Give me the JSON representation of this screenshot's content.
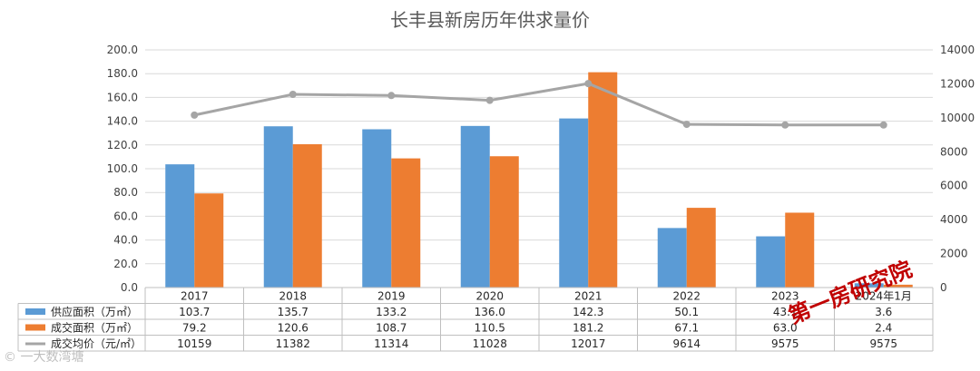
{
  "chart_data": {
    "type": "bar",
    "title": "长丰县新房历年供求量价",
    "categories": [
      "2017",
      "2018",
      "2019",
      "2020",
      "2021",
      "2022",
      "2023",
      "2024年1月"
    ],
    "y_left": {
      "min": 0,
      "max": 200,
      "step": 20,
      "ticks": [
        "0.0",
        "20.0",
        "40.0",
        "60.0",
        "80.0",
        "100.0",
        "120.0",
        "140.0",
        "160.0",
        "180.0",
        "200.0"
      ]
    },
    "y_right": {
      "min": 0,
      "max": 14000,
      "step": 2000,
      "ticks": [
        "0",
        "2000",
        "4000",
        "6000",
        "8000",
        "10000",
        "12000",
        "14000"
      ]
    },
    "gridlines": true,
    "legend_position": "data-table",
    "series": [
      {
        "name": "供应面积（万㎡）",
        "type": "bar",
        "axis": "left",
        "color": "#5b9bd5",
        "values": [
          103.7,
          135.7,
          133.2,
          136.0,
          142.3,
          50.1,
          43.1,
          3.6
        ],
        "labels": [
          "103.7",
          "135.7",
          "133.2",
          "136.0",
          "142.3",
          "50.1",
          "43.1",
          "3.6"
        ]
      },
      {
        "name": "成交面积（万㎡）",
        "type": "bar",
        "axis": "left",
        "color": "#ed7d31",
        "values": [
          79.2,
          120.6,
          108.7,
          110.5,
          181.2,
          67.1,
          63.0,
          2.4
        ],
        "labels": [
          "79.2",
          "120.6",
          "108.7",
          "110.5",
          "181.2",
          "67.1",
          "63.0",
          "2.4"
        ]
      },
      {
        "name": "成交均价（元/㎡）",
        "type": "line",
        "axis": "right",
        "color": "#a5a5a5",
        "values": [
          10159,
          11382,
          11314,
          11028,
          12017,
          9614,
          9575,
          9575
        ],
        "labels": [
          "10159",
          "11382",
          "11314",
          "11028",
          "12017",
          "9614",
          "9575",
          "9575"
        ]
      }
    ]
  },
  "watermarks": {
    "stamp": "第一房研究院",
    "corner": "© 一大数湾塘"
  }
}
